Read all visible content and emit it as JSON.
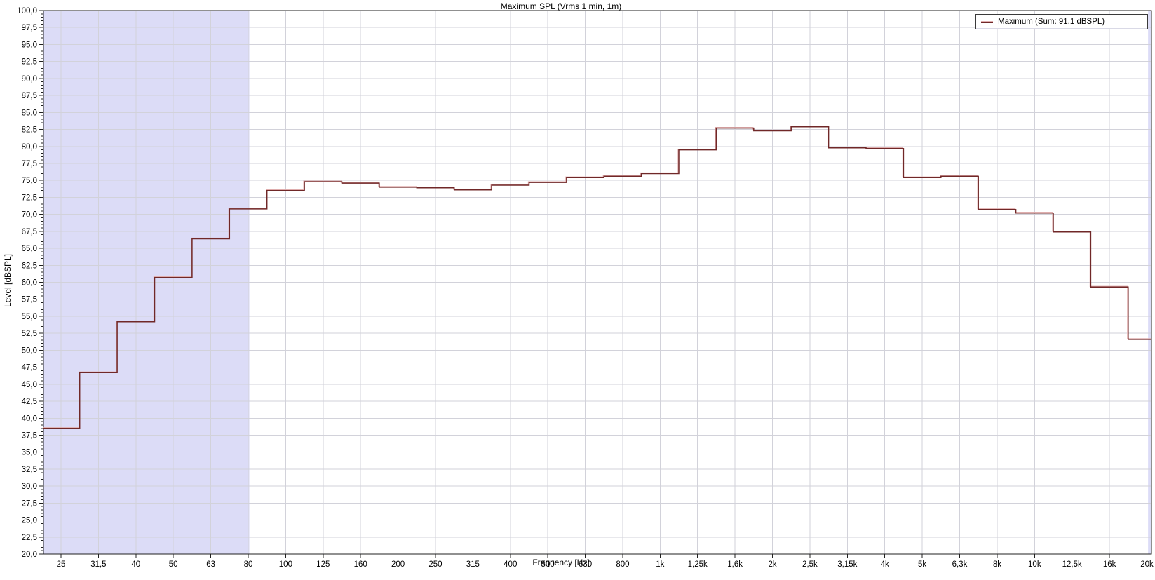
{
  "chart_data": {
    "type": "step-line",
    "title": "Maximum SPL (Vrms 1 min, 1m)",
    "xlabel": "Frequency [Hz]",
    "ylabel": "Level [dBSPL]",
    "legend": {
      "position": "top-right",
      "entries": [
        {
          "label": "Maximum (Sum: 91,1 dBSPL)",
          "color": "#702828"
        }
      ]
    },
    "sum_level_dbspl": "91,1",
    "x_axis_scale": "third-octave bands (logarithmic)",
    "categories": [
      "25",
      "31,5",
      "40",
      "50",
      "63",
      "80",
      "100",
      "125",
      "160",
      "200",
      "250",
      "315",
      "400",
      "500",
      "630",
      "800",
      "1k",
      "1,25k",
      "1,6k",
      "2k",
      "2,5k",
      "3,15k",
      "4k",
      "5k",
      "6,3k",
      "8k",
      "10k",
      "12,5k",
      "16k",
      "20k"
    ],
    "series": [
      {
        "name": "Maximum",
        "values": [
          38.5,
          46.7,
          54.2,
          60.7,
          66.4,
          70.8,
          73.5,
          74.8,
          74.6,
          74.0,
          73.9,
          73.6,
          74.3,
          74.7,
          75.4,
          75.6,
          76.0,
          79.5,
          82.7,
          82.3,
          82.9,
          79.8,
          79.7,
          75.4,
          75.6,
          70.7,
          70.2,
          67.4,
          59.3,
          51.6
        ]
      }
    ],
    "y_axis": {
      "min": 20,
      "max": 100,
      "major_step": 2.5,
      "minor_step": 0.5,
      "tick_labels": [
        "100,0",
        "97,5",
        "95,0",
        "92,5",
        "90,0",
        "87,5",
        "85,0",
        "82,5",
        "80,0",
        "77,5",
        "75,0",
        "72,5",
        "70,0",
        "67,5",
        "65,0",
        "62,5",
        "60,0",
        "57,5",
        "55,0",
        "52,5",
        "50,0",
        "47,5",
        "45,0",
        "42,5",
        "40,0",
        "37,5",
        "35,0",
        "32,5",
        "30,0",
        "27,5",
        "25,0",
        "22,5",
        "20,0"
      ]
    },
    "shaded_regions": [
      {
        "name": "below-80hz",
        "start_band_index": -0.6,
        "end_band_index": 5.03
      },
      {
        "name": "above-20khz",
        "start_band_index": 29.03,
        "end_band_index": 29.7
      }
    ],
    "grid": true,
    "colors": {
      "line_dark": "#702828",
      "line_light": "#dfadad",
      "shade": "#dcdcf7",
      "grid": "#d2d2da",
      "axis": "#202020",
      "text": "#000000"
    }
  }
}
